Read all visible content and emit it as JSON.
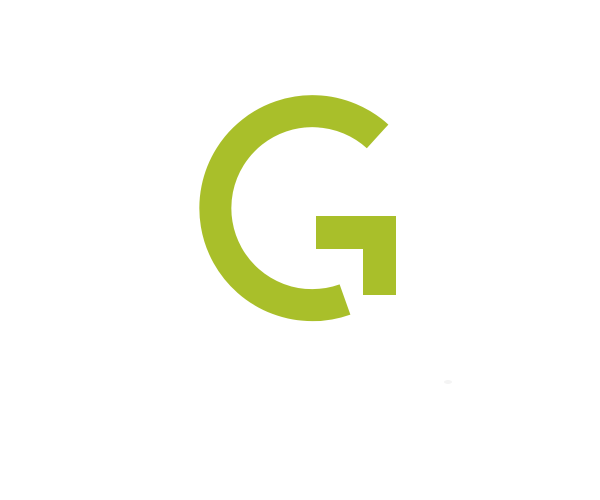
{
  "logo": {
    "icon": "letter-g-logo-icon",
    "color": "#a9bf2a",
    "background": "#ffffff"
  }
}
